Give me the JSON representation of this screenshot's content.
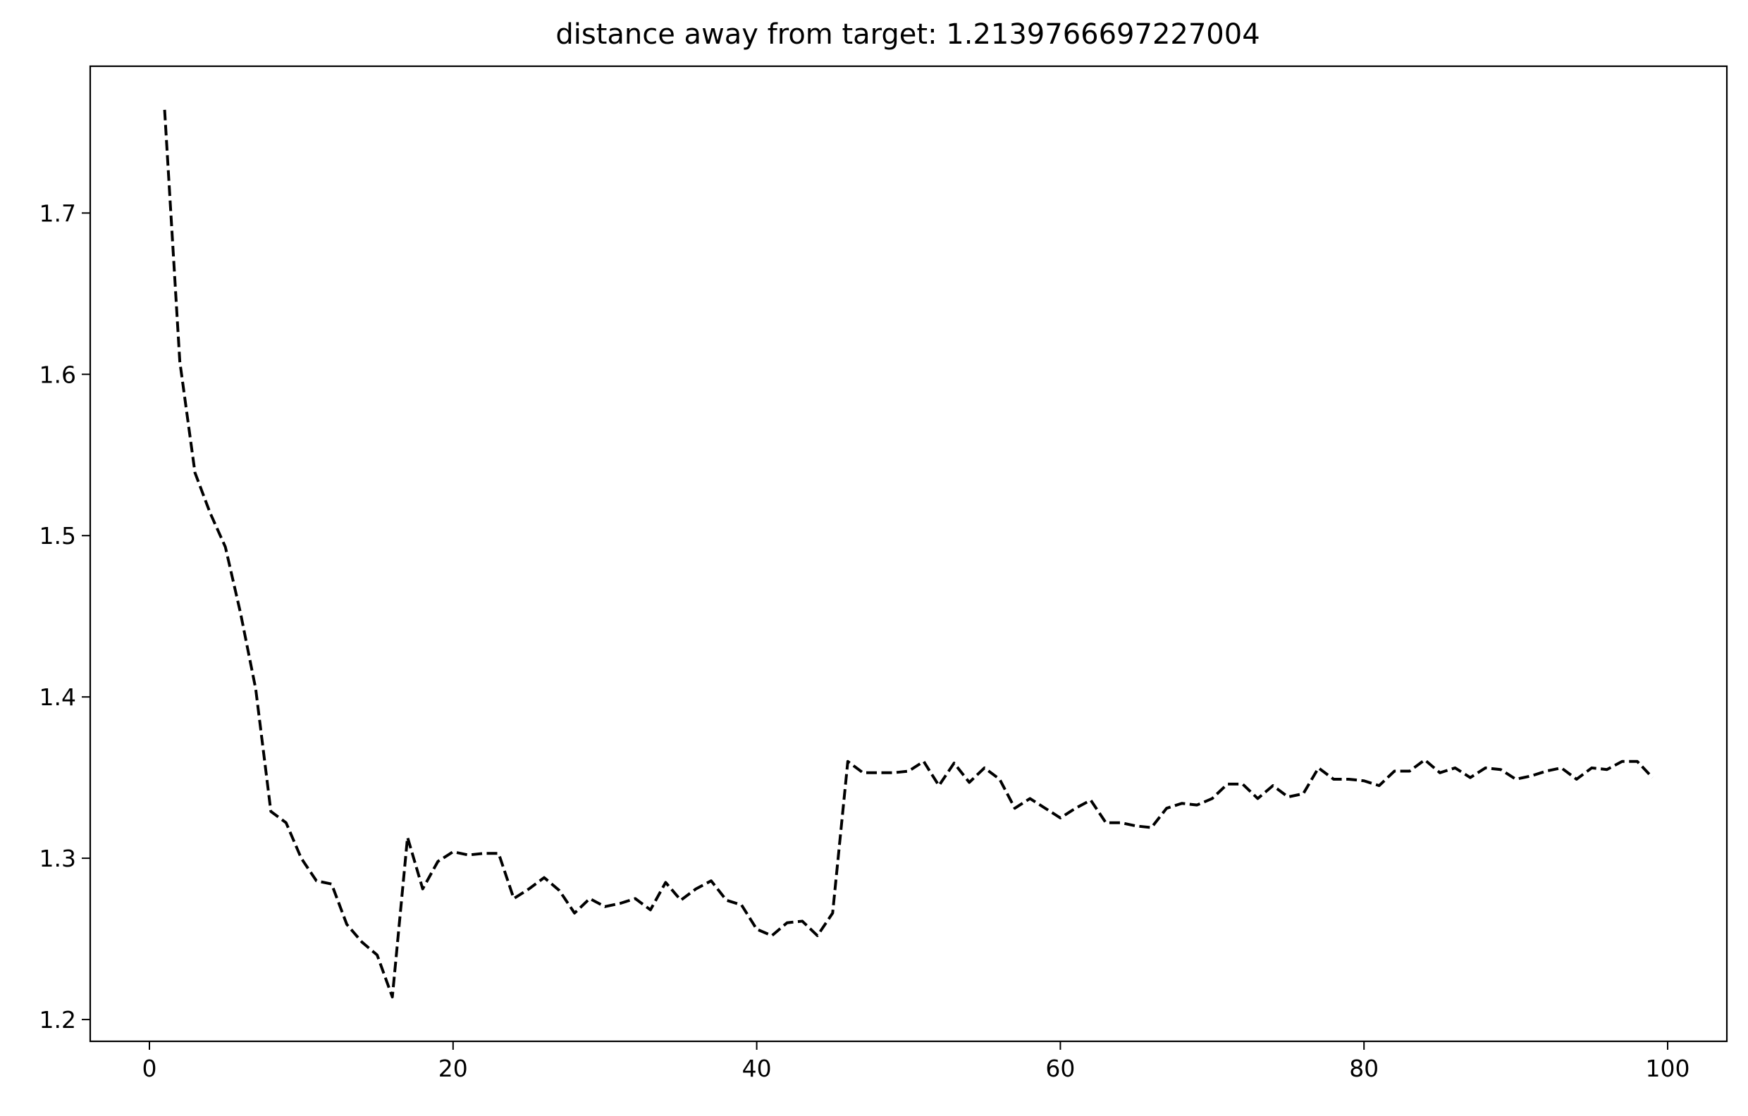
{
  "chart_data": {
    "type": "line",
    "title": "distance away from target: 1.2139766697227004",
    "xlabel": "",
    "ylabel": "",
    "xlim": [
      -3.9,
      103.9
    ],
    "ylim": [
      1.1865,
      1.791
    ],
    "xticks": [
      0,
      20,
      40,
      60,
      80,
      100
    ],
    "xtick_labels": [
      "0",
      "20",
      "40",
      "60",
      "80",
      "100"
    ],
    "yticks": [
      1.2,
      1.3,
      1.4,
      1.5,
      1.6,
      1.7
    ],
    "ytick_labels": [
      "1.2",
      "1.3",
      "1.4",
      "1.5",
      "1.6",
      "1.7"
    ],
    "grid": false,
    "legend": "none",
    "series": [
      {
        "line_style": "dashed",
        "color": "#000000",
        "x": [
          1,
          2,
          3,
          4,
          5,
          6,
          7,
          8,
          9,
          10,
          11,
          12,
          13,
          14,
          15,
          16,
          17,
          18,
          19,
          20,
          21,
          22,
          23,
          24,
          25,
          26,
          27,
          28,
          29,
          30,
          31,
          32,
          33,
          34,
          35,
          36,
          37,
          38,
          39,
          40,
          41,
          42,
          43,
          44,
          45,
          46,
          47,
          48,
          49,
          50,
          51,
          52,
          53,
          54,
          55,
          56,
          57,
          58,
          59,
          60,
          61,
          62,
          63,
          64,
          65,
          66,
          67,
          68,
          69,
          70,
          71,
          72,
          73,
          74,
          75,
          76,
          77,
          78,
          79,
          80,
          81,
          82,
          83,
          84,
          85,
          86,
          87,
          88,
          89,
          90,
          91,
          92,
          93,
          94,
          95,
          96,
          97,
          98,
          99
        ],
        "y": [
          1.764,
          1.608,
          1.539,
          1.514,
          1.493,
          1.452,
          1.405,
          1.329,
          1.322,
          1.3,
          1.286,
          1.284,
          1.259,
          1.248,
          1.24,
          1.214,
          1.313,
          1.281,
          1.298,
          1.304,
          1.302,
          1.303,
          1.303,
          1.275,
          1.281,
          1.288,
          1.28,
          1.266,
          1.275,
          1.27,
          1.272,
          1.275,
          1.268,
          1.285,
          1.274,
          1.281,
          1.286,
          1.274,
          1.271,
          1.256,
          1.252,
          1.26,
          1.261,
          1.252,
          1.266,
          1.36,
          1.353,
          1.353,
          1.353,
          1.354,
          1.36,
          1.345,
          1.359,
          1.347,
          1.356,
          1.349,
          1.331,
          1.337,
          1.331,
          1.325,
          1.331,
          1.336,
          1.322,
          1.322,
          1.32,
          1.319,
          1.331,
          1.334,
          1.333,
          1.337,
          1.346,
          1.346,
          1.337,
          1.345,
          1.338,
          1.34,
          1.356,
          1.349,
          1.349,
          1.348,
          1.345,
          1.354,
          1.354,
          1.361,
          1.353,
          1.356,
          1.35,
          1.356,
          1.355,
          1.349,
          1.351,
          1.354,
          1.356,
          1.349,
          1.356,
          1.355,
          1.36,
          1.36,
          1.35
        ]
      }
    ]
  }
}
